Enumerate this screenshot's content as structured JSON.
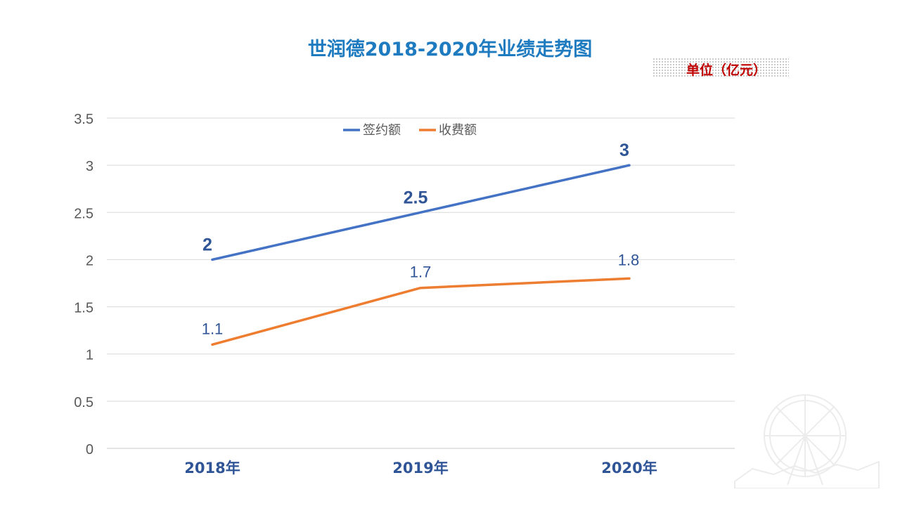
{
  "chart_data": {
    "type": "line",
    "title": "世润德2018-2020年业绩走势图",
    "unit": "单位（亿元）",
    "categories": [
      "2018年",
      "2019年",
      "2020年"
    ],
    "series": [
      {
        "name": "签约额",
        "color": "#4472c4",
        "values": [
          2,
          2.5,
          3
        ],
        "labels": [
          "2",
          "2.5",
          "3"
        ]
      },
      {
        "name": "收费额",
        "color": "#ed7d31",
        "values": [
          1.1,
          1.7,
          1.8
        ],
        "labels": [
          "1.1",
          "1.7",
          "1.8"
        ]
      }
    ],
    "ylim": [
      0,
      3.5
    ],
    "yticks": [
      "0",
      "0.5",
      "1",
      "1.5",
      "2",
      "2.5",
      "3",
      "3.5"
    ],
    "grid": true,
    "legend": "top"
  }
}
